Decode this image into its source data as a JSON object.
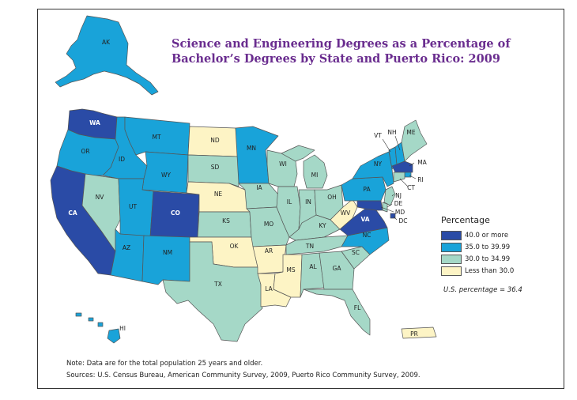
{
  "map": {
    "title_line1": "Science and Engineering Degrees as a Percentage of",
    "title_line2": "Bachelor’s Degrees by State and Puerto Rico: 2009",
    "colors": {
      "cat1": "#2a4ba6",
      "cat2": "#19a3d9",
      "cat3": "#a5d8c7",
      "cat4": "#fdf4c5",
      "border": "#555555"
    },
    "states": {
      "AK": {
        "label": "AK",
        "category": "cat2"
      },
      "HI": {
        "label": "HI",
        "category": "cat2"
      },
      "WA": {
        "label": "WA",
        "category": "cat1"
      },
      "OR": {
        "label": "OR",
        "category": "cat2"
      },
      "CA": {
        "label": "CA",
        "category": "cat1"
      },
      "ID": {
        "label": "ID",
        "category": "cat2"
      },
      "NV": {
        "label": "NV",
        "category": "cat3"
      },
      "MT": {
        "label": "MT",
        "category": "cat2"
      },
      "WY": {
        "label": "WY",
        "category": "cat2"
      },
      "UT": {
        "label": "UT",
        "category": "cat2"
      },
      "CO": {
        "label": "CO",
        "category": "cat1"
      },
      "AZ": {
        "label": "AZ",
        "category": "cat2"
      },
      "NM": {
        "label": "NM",
        "category": "cat2"
      },
      "ND": {
        "label": "ND",
        "category": "cat4"
      },
      "SD": {
        "label": "SD",
        "category": "cat3"
      },
      "NE": {
        "label": "NE",
        "category": "cat4"
      },
      "KS": {
        "label": "KS",
        "category": "cat3"
      },
      "OK": {
        "label": "OK",
        "category": "cat4"
      },
      "TX": {
        "label": "TX",
        "category": "cat3"
      },
      "MN": {
        "label": "MN",
        "category": "cat2"
      },
      "IA": {
        "label": "IA",
        "category": "cat3"
      },
      "MO": {
        "label": "MO",
        "category": "cat3"
      },
      "AR": {
        "label": "AR",
        "category": "cat4"
      },
      "LA": {
        "label": "LA",
        "category": "cat4"
      },
      "WI": {
        "label": "WI",
        "category": "cat3"
      },
      "IL": {
        "label": "IL",
        "category": "cat3"
      },
      "MI": {
        "label": "MI",
        "category": "cat3"
      },
      "IN": {
        "label": "IN",
        "category": "cat3"
      },
      "OH": {
        "label": "OH",
        "category": "cat3"
      },
      "KY": {
        "label": "KY",
        "category": "cat3"
      },
      "TN": {
        "label": "TN",
        "category": "cat3"
      },
      "MS": {
        "label": "MS",
        "category": "cat4"
      },
      "AL": {
        "label": "AL",
        "category": "cat3"
      },
      "GA": {
        "label": "GA",
        "category": "cat3"
      },
      "FL": {
        "label": "FL",
        "category": "cat3"
      },
      "SC": {
        "label": "SC",
        "category": "cat3"
      },
      "NC": {
        "label": "NC",
        "category": "cat2"
      },
      "VA": {
        "label": "VA",
        "category": "cat1"
      },
      "WV": {
        "label": "WV",
        "category": "cat4"
      },
      "PA": {
        "label": "PA",
        "category": "cat2"
      },
      "NY": {
        "label": "NY",
        "category": "cat2"
      },
      "NJ": {
        "label": "NJ",
        "category": "cat3"
      },
      "DE": {
        "label": "DE",
        "category": "cat3"
      },
      "MD": {
        "label": "MD",
        "category": "cat1"
      },
      "DC": {
        "label": "DC",
        "category": "cat1"
      },
      "VT": {
        "label": "VT",
        "category": "cat2"
      },
      "NH": {
        "label": "NH",
        "category": "cat2"
      },
      "ME": {
        "label": "ME",
        "category": "cat3"
      },
      "MA": {
        "label": "MA",
        "category": "cat1"
      },
      "RI": {
        "label": "RI",
        "category": "cat2"
      },
      "CT": {
        "label": "CT",
        "category": "cat3"
      },
      "PR": {
        "label": "PR",
        "category": "cat4"
      }
    }
  },
  "legend": {
    "title": "Percentage",
    "items": [
      {
        "label": "40.0 or more",
        "category": "cat1"
      },
      {
        "label": "35.0 to 39.99",
        "category": "cat2"
      },
      {
        "label": "30.0 to 34.99",
        "category": "cat3"
      },
      {
        "label": "Less than 30.0",
        "category": "cat4"
      }
    ],
    "us_percentage": "U.S. percentage = 36.4"
  },
  "notes": {
    "note": "Note: Data are for the total population 25 years and older.",
    "sources": "Sources: U.S. Census Bureau, American Community Survey, 2009, Puerto Rico Community Survey, 2009."
  }
}
